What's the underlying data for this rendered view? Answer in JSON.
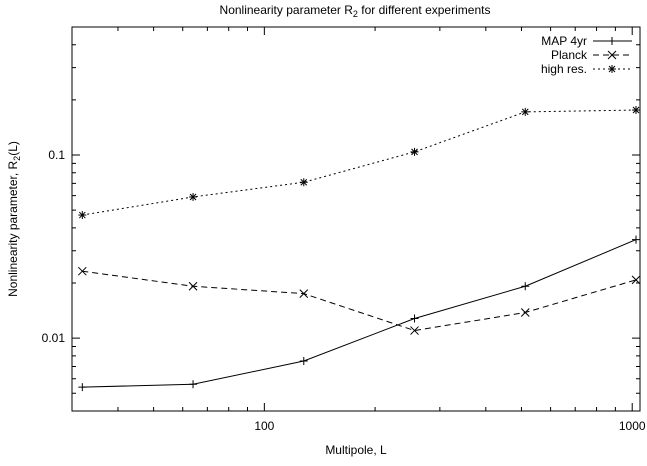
{
  "chart_data": {
    "type": "line",
    "title": "Nonlinearity parameter R",
    "title_sub": "2",
    "title_suffix": " for different experiments",
    "xlabel": "Multipole, L",
    "ylabel": "Nonlinearity parameter, R",
    "ylabel_sub": "2",
    "ylabel_suffix": "(L)",
    "xscale": "log",
    "yscale": "log",
    "xlim": [
      30,
      1050
    ],
    "ylim": [
      0.004,
      0.5
    ],
    "xticks": [
      {
        "value": 100,
        "label": "100"
      },
      {
        "value": 1000,
        "label": "1000"
      }
    ],
    "yticks": [
      {
        "value": 0.01,
        "label": "0.01"
      },
      {
        "value": 0.1,
        "label": "0.1"
      }
    ],
    "grid": false,
    "legend_position": "top-right",
    "series": [
      {
        "name": "MAP 4yr",
        "line_style": "solid",
        "marker": "plus",
        "x": [
          32,
          64,
          128,
          256,
          512,
          1024
        ],
        "y": [
          0.0054,
          0.0056,
          0.0075,
          0.0128,
          0.0192,
          0.0345
        ]
      },
      {
        "name": "Planck",
        "line_style": "dashed",
        "marker": "cross",
        "x": [
          32,
          64,
          128,
          256,
          512,
          1024
        ],
        "y": [
          0.0232,
          0.0192,
          0.0175,
          0.011,
          0.0138,
          0.0208
        ]
      },
      {
        "name": "high res.",
        "line_style": "dotted",
        "marker": "star",
        "x": [
          32,
          64,
          128,
          256,
          512,
          1024
        ],
        "y": [
          0.047,
          0.059,
          0.071,
          0.104,
          0.172,
          0.176
        ]
      }
    ]
  }
}
